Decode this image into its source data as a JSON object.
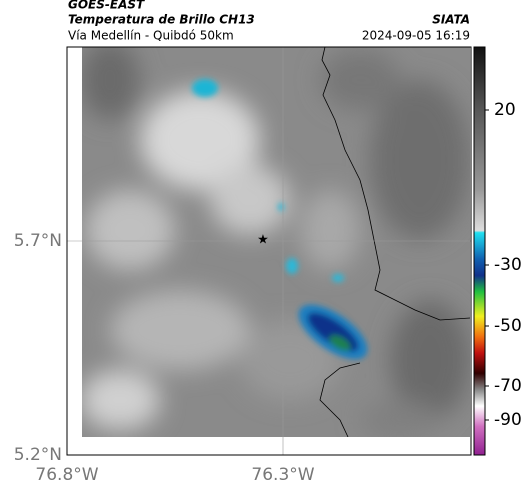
{
  "header": {
    "source": "GOES-EAST",
    "product": "Temperatura de Brillo CH13",
    "region": "Vía Medellín - Quibdó 50km",
    "agency": "SIATA",
    "datetime": "2024-09-05 16:19"
  },
  "map": {
    "lat_ticks": [
      "5.7°N",
      "5.2°N"
    ],
    "lon_ticks": [
      "76.8°W",
      "76.3°W"
    ]
  },
  "colorbar": {
    "ticks": [
      "20",
      "-30",
      "-50",
      "-70",
      "-90"
    ]
  }
}
